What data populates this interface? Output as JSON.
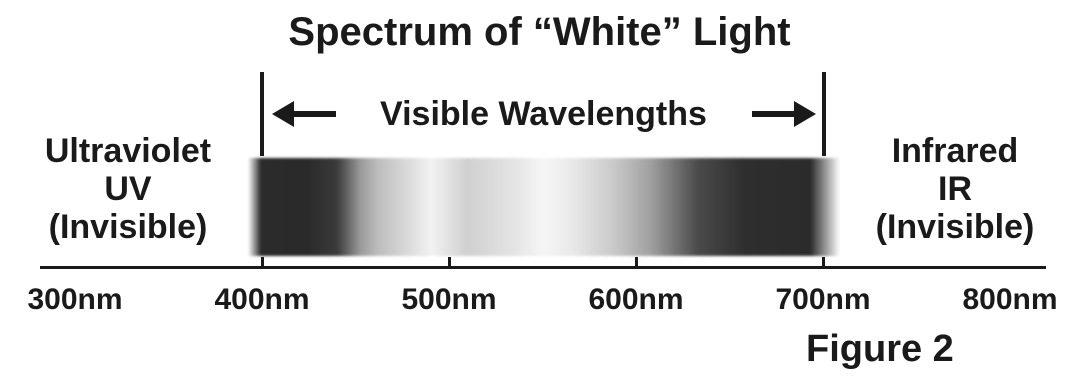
{
  "title": "Spectrum of “White” Light",
  "visible_label": "Visible Wavelengths",
  "uv": {
    "line1": "Ultraviolet",
    "line2": "UV",
    "line3": "(Invisible)"
  },
  "ir": {
    "line1": "Infrared",
    "line2": "IR",
    "line3": "(Invisible)"
  },
  "axis": {
    "ticks": [
      {
        "label": "300nm",
        "value": 300
      },
      {
        "label": "400nm",
        "value": 400
      },
      {
        "label": "500nm",
        "value": 500
      },
      {
        "label": "600nm",
        "value": 600
      },
      {
        "label": "700nm",
        "value": 700
      },
      {
        "label": "800nm",
        "value": 800
      }
    ],
    "visible_range": [
      400,
      700
    ]
  },
  "figure_label": "Figure 2",
  "colors": {
    "ink": "#1a1a1a",
    "background": "#ffffff"
  }
}
